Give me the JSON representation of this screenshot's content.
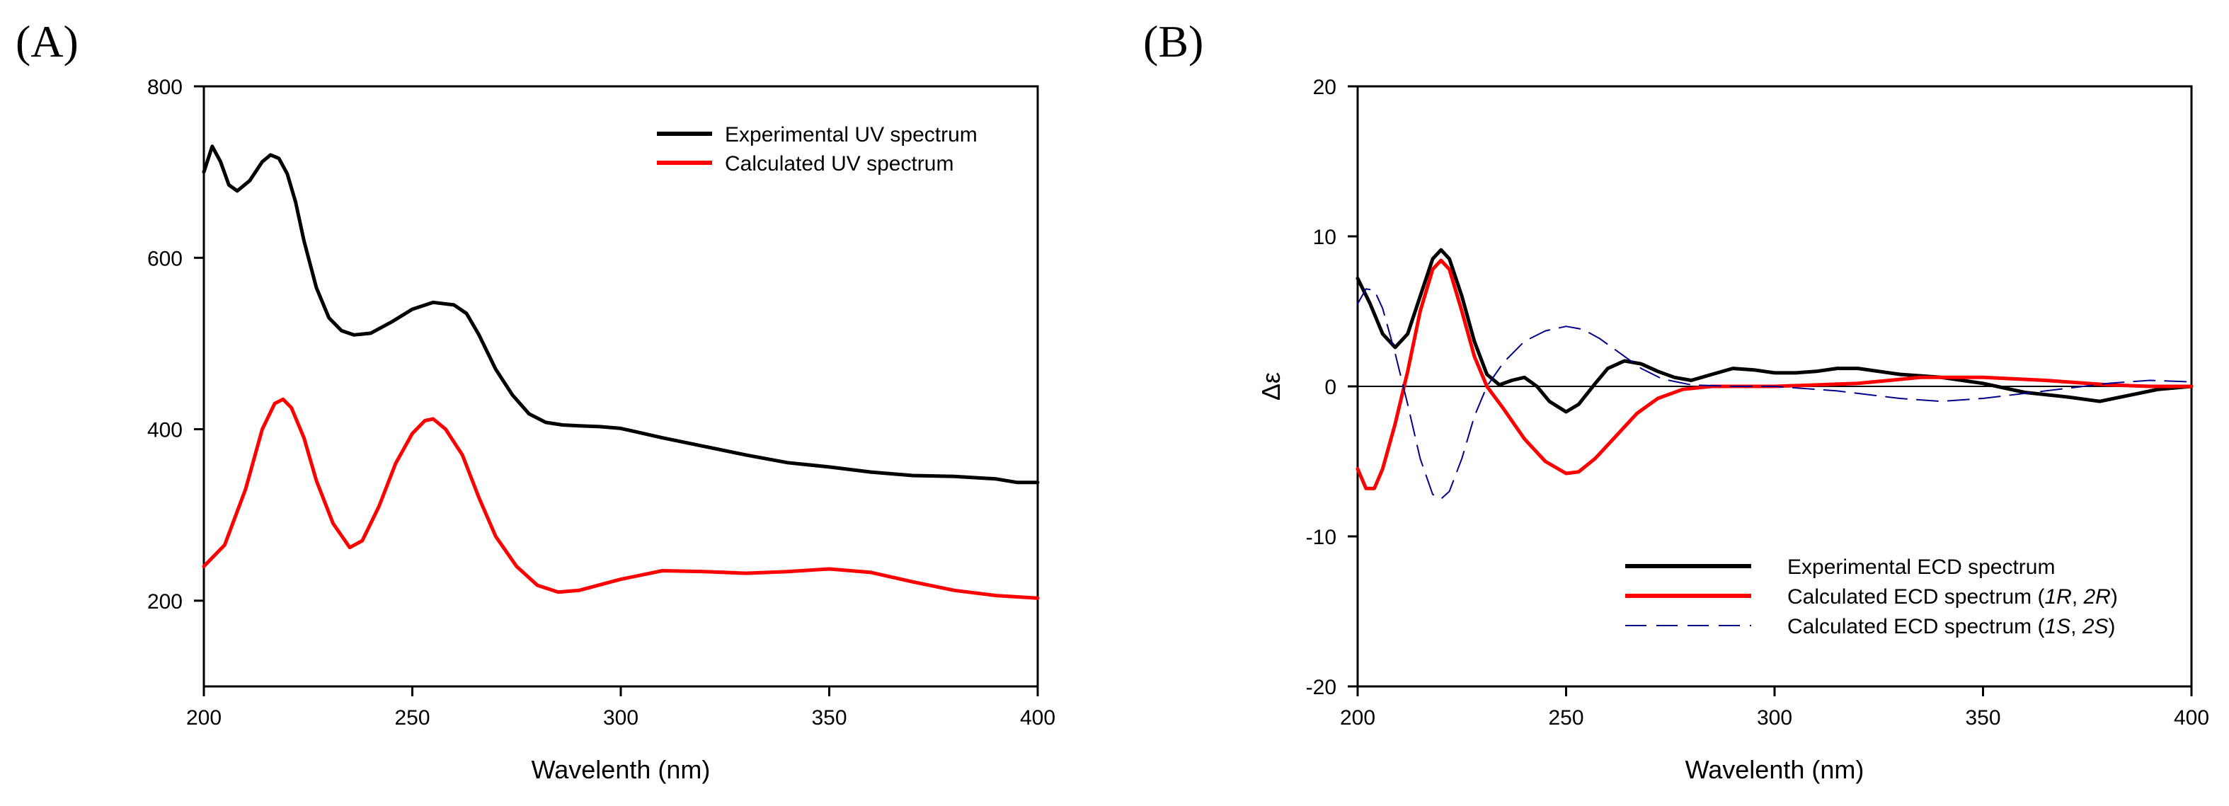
{
  "chart_data": [
    {
      "type": "line",
      "panel_label": "(A)",
      "title": "",
      "xlabel": "Wavelenth (nm)",
      "ylabel": "",
      "xlim": [
        200,
        400
      ],
      "ylim": [
        100,
        800
      ],
      "x_ticks": [
        "200",
        "250",
        "300",
        "350",
        "400"
      ],
      "y_ticks": [
        "200",
        "400",
        "600",
        "800"
      ],
      "grid": false,
      "legend_position": "top-right",
      "series": [
        {
          "name": "Experimental UV spectrum",
          "color": "#000000",
          "dash": "solid",
          "points": [
            [
              200,
              700
            ],
            [
              202,
              730
            ],
            [
              204,
              712
            ],
            [
              206,
              685
            ],
            [
              208,
              678
            ],
            [
              211,
              690
            ],
            [
              214,
              712
            ],
            [
              216,
              720
            ],
            [
              218,
              716
            ],
            [
              220,
              698
            ],
            [
              222,
              665
            ],
            [
              224,
              620
            ],
            [
              227,
              565
            ],
            [
              230,
              530
            ],
            [
              233,
              515
            ],
            [
              236,
              510
            ],
            [
              240,
              512
            ],
            [
              245,
              525
            ],
            [
              250,
              540
            ],
            [
              255,
              548
            ],
            [
              260,
              545
            ],
            [
              263,
              535
            ],
            [
              266,
              510
            ],
            [
              270,
              470
            ],
            [
              274,
              440
            ],
            [
              278,
              418
            ],
            [
              282,
              408
            ],
            [
              286,
              405
            ],
            [
              290,
              404
            ],
            [
              295,
              403
            ],
            [
              300,
              401
            ],
            [
              310,
              390
            ],
            [
              320,
              380
            ],
            [
              330,
              370
            ],
            [
              340,
              361
            ],
            [
              350,
              356
            ],
            [
              360,
              350
            ],
            [
              370,
              346
            ],
            [
              380,
              345
            ],
            [
              390,
              342
            ],
            [
              395,
              338
            ],
            [
              400,
              338
            ]
          ]
        },
        {
          "name": "Calculated UV spectrum",
          "color": "#ff0000",
          "dash": "solid",
          "points": [
            [
              200,
              240
            ],
            [
              205,
              265
            ],
            [
              210,
              330
            ],
            [
              214,
              400
            ],
            [
              217,
              430
            ],
            [
              219,
              435
            ],
            [
              221,
              425
            ],
            [
              224,
              390
            ],
            [
              227,
              340
            ],
            [
              231,
              290
            ],
            [
              235,
              262
            ],
            [
              238,
              270
            ],
            [
              242,
              310
            ],
            [
              246,
              360
            ],
            [
              250,
              395
            ],
            [
              253,
              410
            ],
            [
              255,
              412
            ],
            [
              258,
              400
            ],
            [
              262,
              370
            ],
            [
              266,
              320
            ],
            [
              270,
              275
            ],
            [
              275,
              240
            ],
            [
              280,
              218
            ],
            [
              285,
              210
            ],
            [
              290,
              212
            ],
            [
              300,
              225
            ],
            [
              310,
              235
            ],
            [
              320,
              234
            ],
            [
              330,
              232
            ],
            [
              340,
              234
            ],
            [
              350,
              237
            ],
            [
              360,
              233
            ],
            [
              370,
              222
            ],
            [
              380,
              212
            ],
            [
              390,
              206
            ],
            [
              400,
              203
            ]
          ]
        }
      ]
    },
    {
      "type": "line",
      "panel_label": "(B)",
      "title": "",
      "xlabel": "Wavelenth (nm)",
      "ylabel": "Δε",
      "xlim": [
        200,
        400
      ],
      "ylim": [
        -20,
        20
      ],
      "x_ticks": [
        "200",
        "250",
        "300",
        "350",
        "400"
      ],
      "y_ticks": [
        "-20",
        "-10",
        "0",
        "10",
        "20"
      ],
      "grid": false,
      "zero_line": true,
      "legend_position": "bottom-right",
      "series": [
        {
          "name": "Experimental ECD spectrum",
          "color": "#000000",
          "dash": "solid",
          "points": [
            [
              200,
              7.2
            ],
            [
              203,
              5.5
            ],
            [
              206,
              3.5
            ],
            [
              209,
              2.6
            ],
            [
              212,
              3.5
            ],
            [
              215,
              6.0
            ],
            [
              218,
              8.5
            ],
            [
              220,
              9.1
            ],
            [
              222,
              8.5
            ],
            [
              225,
              6.0
            ],
            [
              228,
              3.0
            ],
            [
              231,
              0.8
            ],
            [
              234,
              0.1
            ],
            [
              237,
              0.4
            ],
            [
              240,
              0.6
            ],
            [
              243,
              0.0
            ],
            [
              246,
              -1.0
            ],
            [
              250,
              -1.7
            ],
            [
              253,
              -1.2
            ],
            [
              257,
              0.2
            ],
            [
              260,
              1.2
            ],
            [
              264,
              1.7
            ],
            [
              268,
              1.5
            ],
            [
              272,
              1.0
            ],
            [
              276,
              0.6
            ],
            [
              280,
              0.4
            ],
            [
              285,
              0.8
            ],
            [
              290,
              1.2
            ],
            [
              295,
              1.1
            ],
            [
              300,
              0.9
            ],
            [
              305,
              0.9
            ],
            [
              310,
              1.0
            ],
            [
              315,
              1.2
            ],
            [
              320,
              1.2
            ],
            [
              325,
              1.0
            ],
            [
              330,
              0.8
            ],
            [
              340,
              0.6
            ],
            [
              350,
              0.2
            ],
            [
              360,
              -0.4
            ],
            [
              370,
              -0.7
            ],
            [
              378,
              -1.0
            ],
            [
              385,
              -0.6
            ],
            [
              392,
              -0.2
            ],
            [
              400,
              0.0
            ]
          ]
        },
        {
          "name": "Calculated ECD spectrum (1R, 2R)",
          "color": "#ff0000",
          "dash": "solid",
          "points": [
            [
              200,
              -5.5
            ],
            [
              202,
              -6.8
            ],
            [
              204,
              -6.8
            ],
            [
              206,
              -5.5
            ],
            [
              209,
              -2.5
            ],
            [
              212,
              1.0
            ],
            [
              215,
              5.0
            ],
            [
              218,
              7.8
            ],
            [
              220,
              8.4
            ],
            [
              222,
              7.8
            ],
            [
              225,
              5.0
            ],
            [
              228,
              2.0
            ],
            [
              231,
              0.0
            ],
            [
              235,
              -1.5
            ],
            [
              240,
              -3.5
            ],
            [
              245,
              -5.0
            ],
            [
              250,
              -5.8
            ],
            [
              253,
              -5.7
            ],
            [
              257,
              -4.8
            ],
            [
              262,
              -3.3
            ],
            [
              267,
              -1.8
            ],
            [
              272,
              -0.8
            ],
            [
              278,
              -0.2
            ],
            [
              285,
              0.0
            ],
            [
              300,
              0.0
            ],
            [
              320,
              0.2
            ],
            [
              335,
              0.6
            ],
            [
              350,
              0.6
            ],
            [
              365,
              0.4
            ],
            [
              380,
              0.1
            ],
            [
              390,
              0.0
            ],
            [
              400,
              0.0
            ]
          ]
        },
        {
          "name": "Calculated ECD spectrum (1S, 2S)",
          "color": "#00008b",
          "dash": "dashed",
          "points": [
            [
              200,
              5.5
            ],
            [
              202,
              6.5
            ],
            [
              204,
              6.4
            ],
            [
              206,
              5.2
            ],
            [
              209,
              2.2
            ],
            [
              212,
              -1.2
            ],
            [
              215,
              -4.8
            ],
            [
              218,
              -7.2
            ],
            [
              220,
              -7.5
            ],
            [
              222,
              -7.0
            ],
            [
              225,
              -4.8
            ],
            [
              228,
              -2.0
            ],
            [
              231,
              0.0
            ],
            [
              235,
              1.6
            ],
            [
              240,
              3.0
            ],
            [
              245,
              3.7
            ],
            [
              250,
              4.0
            ],
            [
              254,
              3.8
            ],
            [
              258,
              3.2
            ],
            [
              263,
              2.2
            ],
            [
              268,
              1.2
            ],
            [
              273,
              0.5
            ],
            [
              280,
              0.1
            ],
            [
              290,
              0.0
            ],
            [
              300,
              0.0
            ],
            [
              315,
              -0.3
            ],
            [
              330,
              -0.8
            ],
            [
              340,
              -1.0
            ],
            [
              350,
              -0.8
            ],
            [
              365,
              -0.3
            ],
            [
              380,
              0.2
            ],
            [
              390,
              0.4
            ],
            [
              400,
              0.3
            ]
          ]
        }
      ],
      "legend_entries": [
        {
          "prefix": "Experimental ECD spectrum",
          "italic1": "",
          "mid": "",
          "italic2": "",
          "suffix": ""
        },
        {
          "prefix": "Calculated ECD spectrum (",
          "italic1": "1R",
          "mid": ", ",
          "italic2": "2R",
          "suffix": ")"
        },
        {
          "prefix": "Calculated ECD spectrum (",
          "italic1": "1S",
          "mid": ", ",
          "italic2": "2S",
          "suffix": ")"
        }
      ]
    }
  ]
}
